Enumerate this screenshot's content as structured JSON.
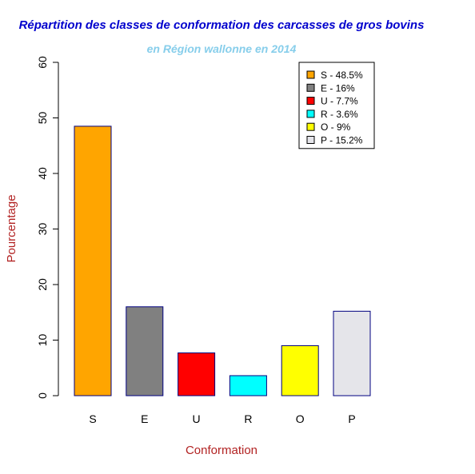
{
  "chart_data": {
    "type": "bar",
    "title": "Répartition des classes de conformation des carcasses de gros bovins",
    "subtitle": "en Région wallonne en 2014",
    "xlabel": "Conformation",
    "ylabel": "Pourcentage",
    "categories": [
      "S",
      "E",
      "U",
      "R",
      "O",
      "P"
    ],
    "values": [
      48.5,
      16,
      7.7,
      3.6,
      9,
      15.2
    ],
    "colors": [
      "#FFA500",
      "#808080",
      "#FF0000",
      "#00FFFF",
      "#FFFF00",
      "#E5E5EA"
    ],
    "bar_border_color": "#000080",
    "ylim": [
      0,
      60
    ],
    "yticks": [
      "0",
      "10",
      "20",
      "30",
      "40",
      "50",
      "60"
    ],
    "legend": {
      "position": "top-right",
      "entries": [
        "S - 48.5%",
        "E - 16%",
        "U - 7.7%",
        "R - 3.6%",
        "O - 9%",
        "P - 15.2%"
      ]
    },
    "title_color": "#0000CD",
    "subtitle_color": "#87CEEB",
    "axis_label_color": "#B22222",
    "grid": false
  }
}
